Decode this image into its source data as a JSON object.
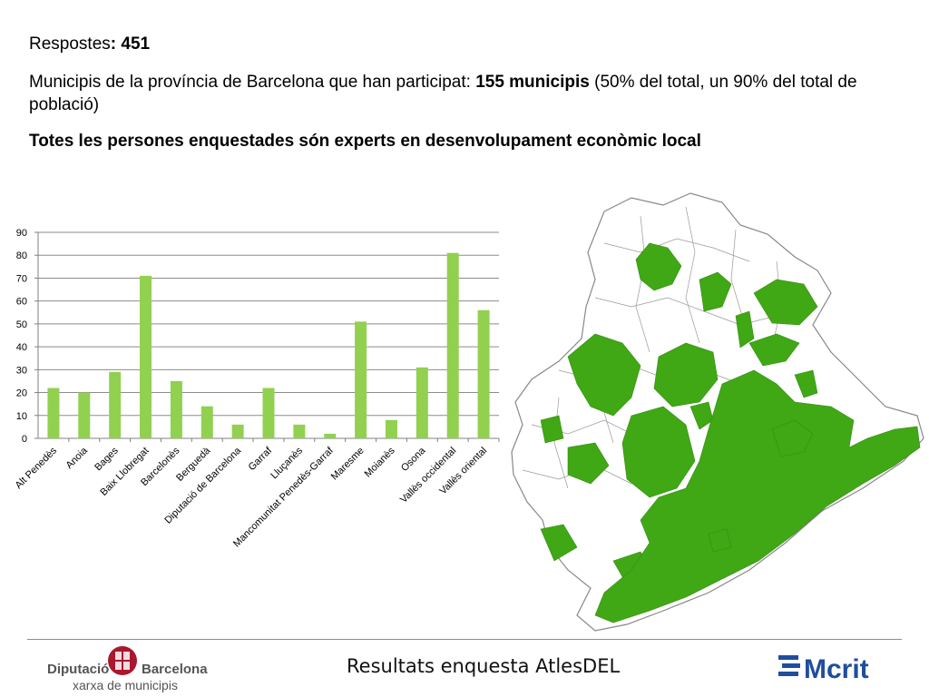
{
  "intro": {
    "line1_label": "Respostes",
    "line1_value": ": 451",
    "line2_pre": "Municipis de la província de Barcelona que han participat: ",
    "line2_bold": "155 municipis",
    "line2_post": " (50% del total, un 90% del total de població)",
    "line3": "Totes les persones enquestades són experts en desenvolupament econòmic local"
  },
  "chart_data": {
    "type": "bar",
    "categories": [
      "Alt Penedès",
      "Anoia",
      "Bages",
      "Baix Llobregat",
      "Barcelonès",
      "Berguedà",
      "Diputació de Barcelona",
      "Garraf",
      "Lluçanès",
      "Mancomunitat Penedès-Garraf",
      "Maresme",
      "Moianès",
      "Osona",
      "Vallès occidental",
      "Vallès oriental"
    ],
    "values": [
      22,
      20,
      29,
      71,
      25,
      14,
      6,
      22,
      6,
      2,
      51,
      8,
      31,
      81,
      56
    ],
    "yticks": [
      0,
      10,
      20,
      30,
      40,
      50,
      60,
      70,
      80,
      90
    ],
    "ylim": [
      0,
      90
    ],
    "grid": true,
    "bar_color": "#92d050",
    "title": "",
    "xlabel": "",
    "ylabel": ""
  },
  "map": {
    "participating_color": "#3fa814",
    "other_color": "#ffffff",
    "border_color": "#888888"
  },
  "footer": {
    "title": "Resultats enquesta AtlesDEL",
    "org_name_1": "Diputació",
    "org_name_2": "Barcelona",
    "org_sub": "xarxa de municipis",
    "partner": "Mcrit",
    "brand_red": "#a8192e",
    "brand_blue": "#1f4e9c"
  }
}
